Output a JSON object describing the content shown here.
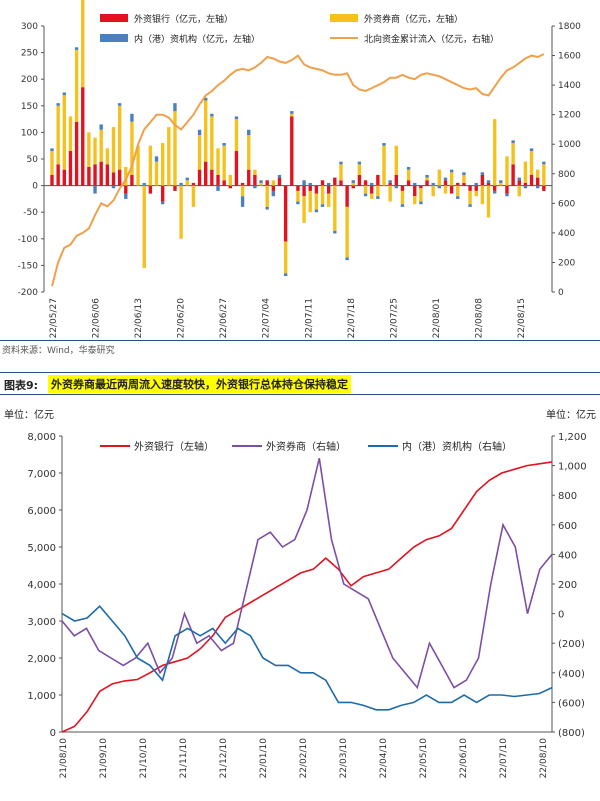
{
  "source_note": "资料来源：Wind，华泰研究",
  "figure_number": "图表9:",
  "figure_title": "外资券商最近两周流入速度较快，外资银行总体持仓保持稳定",
  "chart_data": [
    {
      "type": "bar",
      "legend": {
        "bank": "外资银行（亿元，左轴）",
        "broker": "外资券商（亿元，左轴）",
        "hk": "内（港）资机构（亿元，左轴）",
        "cum": "北向资金累计流入（亿元，右轴）"
      },
      "ylim_left": [
        -200,
        300
      ],
      "yticks_left": [
        "300",
        "250",
        "200",
        "150",
        "100",
        "50",
        "0",
        "-50",
        "-100",
        "-150",
        "-200"
      ],
      "ylim_right": [
        0,
        1800
      ],
      "yticks_right": [
        "1800",
        "1600",
        "1400",
        "1200",
        "1000",
        "800",
        "600",
        "400",
        "200",
        "0"
      ],
      "x_labels": [
        "22/05/27",
        "22/06/06",
        "22/06/13",
        "22/06/20",
        "22/06/27",
        "22/07/04",
        "22/07/11",
        "22/07/18",
        "22/07/25",
        "22/08/01",
        "22/08/08",
        "22/08/15"
      ],
      "colors": {
        "bank": "#e3121f",
        "broker": "#f5c11d",
        "hk": "#4a80c0",
        "cum": "#f0a04b"
      },
      "bank_values": [
        20,
        40,
        30,
        65,
        120,
        185,
        35,
        40,
        45,
        40,
        25,
        30,
        -15,
        20,
        0,
        0,
        -15,
        0,
        -30,
        0,
        -10,
        0,
        0,
        5,
        30,
        45,
        30,
        20,
        10,
        -5,
        65,
        5,
        30,
        20,
        0,
        10,
        -10,
        15,
        -105,
        130,
        -10,
        -20,
        -10,
        -15,
        10,
        -15,
        15,
        10,
        -40,
        -5,
        20,
        10,
        -15,
        20,
        0,
        5,
        20,
        -10,
        10,
        -20,
        -5,
        10,
        0,
        0,
        10,
        -15,
        5,
        5,
        -10,
        -10,
        20,
        5,
        -10,
        0,
        -15,
        40,
        10,
        5,
        20,
        15,
        -10
      ],
      "broker_values": [
        45,
        110,
        140,
        65,
        135,
        250,
        65,
        50,
        60,
        30,
        85,
        120,
        35,
        100,
        75,
        -155,
        75,
        45,
        80,
        110,
        140,
        -100,
        10,
        -40,
        65,
        115,
        100,
        50,
        65,
        20,
        60,
        -20,
        65,
        10,
        5,
        -40,
        10,
        0,
        -60,
        5,
        -20,
        -50,
        -40,
        -30,
        -35,
        -25,
        -85,
        30,
        -95,
        5,
        20,
        -15,
        -10,
        -20,
        75,
        -30,
        55,
        -25,
        20,
        -15,
        -25,
        5,
        -20,
        30,
        -15,
        25,
        -20,
        15,
        -25,
        -10,
        -35,
        -60,
        125,
        5,
        55,
        40,
        -20,
        40,
        45,
        15,
        40
      ],
      "hk_values": [
        5,
        5,
        5,
        0,
        5,
        10,
        0,
        -15,
        10,
        0,
        -5,
        5,
        -10,
        15,
        0,
        5,
        0,
        10,
        -5,
        0,
        15,
        5,
        5,
        0,
        10,
        5,
        5,
        -10,
        5,
        0,
        5,
        -20,
        10,
        -5,
        5,
        -5,
        -10,
        5,
        -5,
        5,
        -5,
        10,
        5,
        -5,
        -5,
        5,
        -5,
        5,
        -5,
        5,
        5,
        -5,
        5,
        -5,
        5,
        5,
        -5,
        -5,
        5,
        5,
        -5,
        5,
        5,
        -5,
        5,
        5,
        -5,
        5,
        -5,
        5,
        5,
        5,
        -5,
        5,
        -5,
        5,
        5,
        -5,
        5,
        -5,
        5
      ],
      "cum_values": [
        40,
        200,
        300,
        320,
        380,
        400,
        430,
        520,
        600,
        580,
        620,
        700,
        760,
        850,
        1000,
        1100,
        1150,
        1200,
        1200,
        1180,
        1130,
        1100,
        1150,
        1200,
        1270,
        1330,
        1360,
        1400,
        1430,
        1470,
        1500,
        1510,
        1500,
        1520,
        1550,
        1590,
        1580,
        1560,
        1550,
        1570,
        1600,
        1540,
        1520,
        1510,
        1500,
        1480,
        1470,
        1470,
        1480,
        1400,
        1370,
        1360,
        1380,
        1400,
        1420,
        1450,
        1450,
        1470,
        1450,
        1440,
        1470,
        1480,
        1470,
        1460,
        1440,
        1420,
        1400,
        1380,
        1370,
        1380,
        1340,
        1330,
        1390,
        1450,
        1500,
        1520,
        1550,
        1580,
        1600,
        1590,
        1610
      ]
    },
    {
      "type": "line",
      "unit_left": "单位：亿元",
      "unit_right": "单位：亿元",
      "legend": {
        "bank": "外资银行（左轴）",
        "broker": "外资券商（右轴）",
        "hk": "内（港）资机构（右轴）"
      },
      "ylim_left": [
        0,
        8000
      ],
      "yticks_left": [
        "8,000",
        "7,000",
        "6,000",
        "5,000",
        "4,000",
        "3,000",
        "2,000",
        "1,000",
        "0"
      ],
      "ylim_right": [
        -800,
        1200
      ],
      "yticks_right": [
        "1,200",
        "1,000",
        "800",
        "600",
        "400",
        "200",
        "0",
        "(200)",
        "(400)",
        "(600)",
        "(800)"
      ],
      "x_labels": [
        "21/08/10",
        "21/09/10",
        "21/10/10",
        "21/11/10",
        "21/12/10",
        "22/01/10",
        "22/02/10",
        "22/03/10",
        "22/04/10",
        "22/05/10",
        "22/06/10",
        "22/07/10",
        "22/08/10"
      ],
      "colors": {
        "bank": "#e3121f",
        "broker": "#7b4fa6",
        "hk": "#1f6aa8"
      },
      "series": [
        {
          "name": "外资银行（左轴）",
          "values": [
            0,
            150,
            550,
            1100,
            1300,
            1380,
            1420,
            1600,
            1800,
            1900,
            2000,
            2250,
            2600,
            3100,
            3300,
            3500,
            3700,
            3900,
            4100,
            4300,
            4400,
            4700,
            4400,
            3950,
            4200,
            4300,
            4400,
            4700,
            5000,
            5200,
            5300,
            5500,
            6000,
            6500,
            6800,
            7000,
            7100,
            7200,
            7250,
            7300
          ]
        },
        {
          "name": "外资券商（右轴）",
          "values": [
            -50,
            -150,
            -100,
            -250,
            -300,
            -350,
            -300,
            -200,
            -400,
            -300,
            0,
            -200,
            -150,
            -250,
            -200,
            150,
            500,
            550,
            450,
            500,
            700,
            1050,
            500,
            200,
            150,
            100,
            -100,
            -300,
            -400,
            -500,
            -200,
            -350,
            -500,
            -450,
            -300,
            200,
            600,
            450,
            0,
            300,
            400
          ]
        },
        {
          "name": "内（港）资机构（右轴）",
          "values": [
            0,
            -50,
            -30,
            50,
            -50,
            -150,
            -300,
            -350,
            -450,
            -150,
            -100,
            -150,
            -100,
            -200,
            -100,
            -150,
            -300,
            -350,
            -350,
            -400,
            -400,
            -450,
            -600,
            -600,
            -620,
            -650,
            -650,
            -620,
            -600,
            -550,
            -600,
            -600,
            -550,
            -600,
            -550,
            -550,
            -560,
            -550,
            -540,
            -500
          ]
        }
      ]
    }
  ]
}
